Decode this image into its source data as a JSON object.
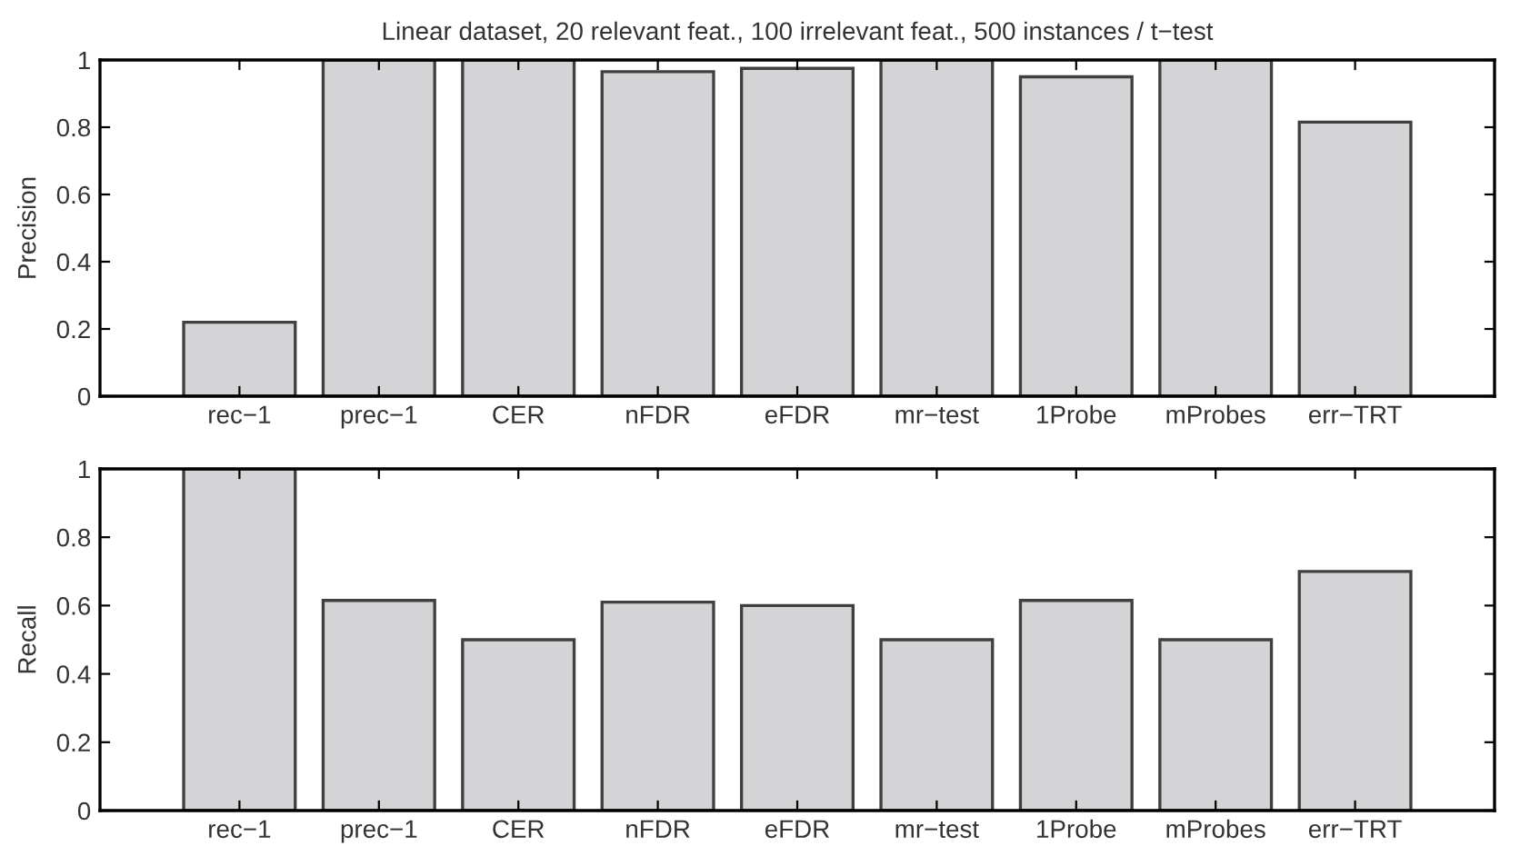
{
  "chart_data": [
    {
      "type": "bar",
      "title": "Linear dataset, 20 relevant feat., 100 irrelevant feat., 500 instances / t−test",
      "ylabel": "Precision",
      "categories": [
        "rec−1",
        "prec−1",
        "CER",
        "nFDR",
        "eFDR",
        "mr−test",
        "1Probe",
        "mProbes",
        "err−TRT"
      ],
      "values": [
        0.22,
        1,
        1,
        0.965,
        0.975,
        1,
        0.95,
        1,
        0.815
      ],
      "color": "#d4d4d6",
      "ylim": [
        0,
        1
      ],
      "yticks": [
        0,
        0.2,
        0.4,
        0.6,
        0.8,
        1
      ],
      "grid": false
    },
    {
      "type": "bar",
      "ylabel": "Recall",
      "categories": [
        "rec−1",
        "prec−1",
        "CER",
        "nFDR",
        "eFDR",
        "mr−test",
        "1Probe",
        "mProbes",
        "err−TRT"
      ],
      "values": [
        1,
        0.615,
        0.5,
        0.61,
        0.6,
        0.5,
        0.615,
        0.5,
        0.7
      ],
      "color": "#d4d4d6",
      "ylim": [
        0,
        1
      ],
      "yticks": [
        0,
        0.2,
        0.4,
        0.6,
        0.8,
        1
      ],
      "grid": false
    }
  ]
}
